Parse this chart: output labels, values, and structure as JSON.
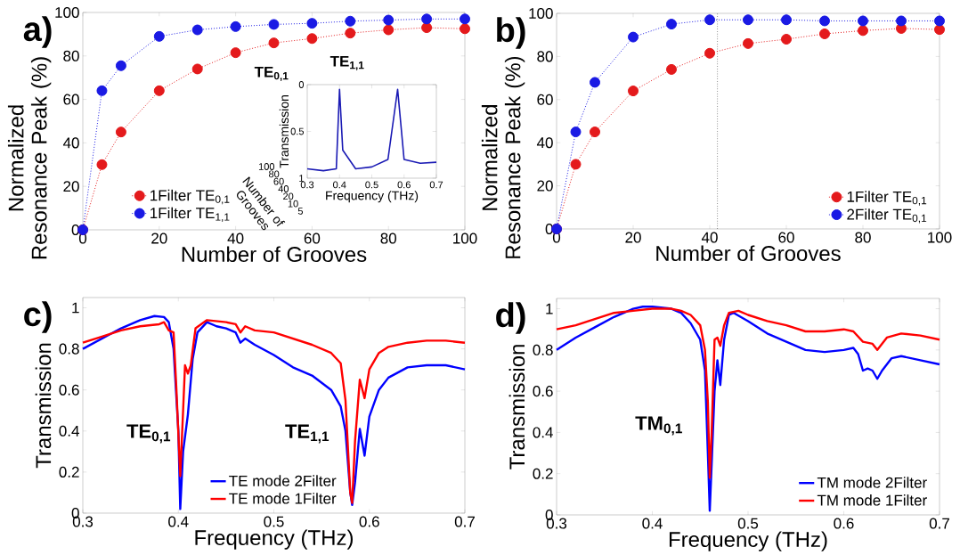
{
  "chart_data": [
    {
      "type": "line",
      "title": "a)",
      "xlabel": "Number of Grooves",
      "ylabel": "Normalized Resonance Peak (%)",
      "xlim": [
        0,
        100
      ],
      "ylim": [
        0,
        100
      ],
      "xticks": [
        0,
        20,
        40,
        60,
        80,
        100
      ],
      "yticks": [
        0,
        20,
        40,
        60,
        80,
        100
      ],
      "marker": "circle",
      "line_style": "dotted",
      "legend": "bottom left",
      "series": [
        {
          "name": "1Filter TE$_{0,1}$",
          "color": "#e41a1c",
          "x": [
            0,
            5,
            10,
            20,
            30,
            40,
            50,
            60,
            70,
            80,
            90,
            100
          ],
          "values": [
            0,
            30,
            45,
            64,
            74,
            81.5,
            86,
            88,
            90.5,
            92,
            93,
            92.5
          ]
        },
        {
          "name": "1Filter TE$_{1,1}$",
          "color": "#1a1ae4",
          "x": [
            0,
            5,
            10,
            20,
            30,
            40,
            50,
            60,
            70,
            80,
            90,
            100
          ],
          "values": [
            0,
            64,
            75.5,
            89,
            92,
            93.5,
            94.5,
            95,
            96,
            96.5,
            97,
            97
          ]
        }
      ]
    },
    {
      "type": "line",
      "xlabel": "Frequency (THz)",
      "ylabel": "Transmission",
      "xlim": [
        0.3,
        0.7
      ],
      "ylim": [
        1,
        0
      ],
      "xticks": [
        0.3,
        0.4,
        0.5,
        0.6,
        0.7
      ],
      "yticks": [
        0,
        0.5,
        1
      ],
      "annotations": [
        "TE$_{0,1}$",
        "TE$_{1,1}$",
        "Number of Grooves",
        "100",
        "80",
        "60",
        "40",
        "20",
        "10",
        "5"
      ],
      "series": [
        {
          "color": "#1a1ab4",
          "x": [
            0.3,
            0.35,
            0.39,
            0.4,
            0.41,
            0.45,
            0.5,
            0.55,
            0.58,
            0.6,
            0.65,
            0.7
          ],
          "values": [
            0.9,
            0.92,
            0.9,
            0.05,
            0.7,
            0.9,
            0.88,
            0.8,
            0.05,
            0.8,
            0.84,
            0.83
          ]
        }
      ]
    },
    {
      "type": "line",
      "title": "b)",
      "xlabel": "Number of Grooves",
      "ylabel": "Normalized Resonance Peak (%)",
      "xlim": [
        0,
        100
      ],
      "ylim": [
        0,
        100
      ],
      "xticks": [
        0,
        20,
        40,
        60,
        80,
        100
      ],
      "yticks": [
        0,
        20,
        40,
        60,
        80,
        100
      ],
      "marker": "circle",
      "line_style": "dotted",
      "legend": "bottom right",
      "ref_lines": [
        {
          "axis": "x",
          "value": 42,
          "color": "#555555",
          "line_style": "dotted"
        }
      ],
      "series": [
        {
          "name": "1Filter TE$_{0,1}$",
          "color": "#e41a1c",
          "x": [
            0,
            5,
            10,
            20,
            30,
            40,
            50,
            60,
            70,
            80,
            90,
            100
          ],
          "values": [
            0,
            30,
            45,
            64,
            74,
            81.5,
            86,
            88,
            90.5,
            92,
            93,
            92.5
          ]
        },
        {
          "name": "2Filter TE$_{0,1}$",
          "color": "#1a1ae4",
          "x": [
            0,
            5,
            10,
            20,
            30,
            40,
            50,
            60,
            70,
            80,
            90,
            100
          ],
          "values": [
            0,
            45,
            68,
            89,
            95,
            97,
            97,
            97,
            96.5,
            96.5,
            96.5,
            96.5
          ]
        }
      ]
    },
    {
      "type": "line",
      "title": "c)",
      "xlabel": "Frequency (THz)",
      "ylabel": "Transmission",
      "xlim": [
        0.3,
        0.7
      ],
      "ylim": [
        0,
        1.05
      ],
      "xticks": [
        0.3,
        0.4,
        0.5,
        0.6,
        0.7
      ],
      "yticks": [
        0,
        0.2,
        0.4,
        0.6,
        0.8,
        1
      ],
      "legend": "bottom",
      "annotations": [
        "TE$_{0,1}$",
        "TE$_{1,1}$"
      ],
      "series": [
        {
          "name": "TE  mode 2Filter",
          "color": "#0000ff",
          "x": [
            0.3,
            0.32,
            0.34,
            0.36,
            0.375,
            0.385,
            0.39,
            0.395,
            0.4,
            0.402,
            0.405,
            0.41,
            0.415,
            0.42,
            0.43,
            0.44,
            0.45,
            0.46,
            0.465,
            0.47,
            0.48,
            0.5,
            0.52,
            0.54,
            0.56,
            0.57,
            0.575,
            0.58,
            0.582,
            0.585,
            0.59,
            0.595,
            0.6,
            0.61,
            0.62,
            0.64,
            0.66,
            0.68,
            0.7
          ],
          "values": [
            0.8,
            0.85,
            0.9,
            0.94,
            0.96,
            0.955,
            0.93,
            0.8,
            0.4,
            0.02,
            0.3,
            0.48,
            0.75,
            0.88,
            0.93,
            0.91,
            0.9,
            0.88,
            0.83,
            0.85,
            0.82,
            0.77,
            0.71,
            0.67,
            0.6,
            0.52,
            0.4,
            0.1,
            0.04,
            0.15,
            0.41,
            0.28,
            0.47,
            0.6,
            0.66,
            0.71,
            0.72,
            0.72,
            0.7
          ]
        },
        {
          "name": "TE  mode 1Filter",
          "color": "#ff0000",
          "x": [
            0.3,
            0.32,
            0.34,
            0.36,
            0.38,
            0.385,
            0.39,
            0.395,
            0.398,
            0.402,
            0.405,
            0.407,
            0.41,
            0.413,
            0.418,
            0.43,
            0.45,
            0.46,
            0.465,
            0.47,
            0.48,
            0.5,
            0.52,
            0.54,
            0.56,
            0.57,
            0.575,
            0.58,
            0.582,
            0.585,
            0.59,
            0.595,
            0.6,
            0.61,
            0.62,
            0.64,
            0.66,
            0.68,
            0.7
          ],
          "values": [
            0.83,
            0.86,
            0.89,
            0.91,
            0.92,
            0.93,
            0.89,
            0.88,
            0.6,
            0.18,
            0.5,
            0.72,
            0.68,
            0.72,
            0.9,
            0.94,
            0.93,
            0.92,
            0.88,
            0.91,
            0.89,
            0.88,
            0.85,
            0.82,
            0.78,
            0.73,
            0.55,
            0.1,
            0.05,
            0.35,
            0.65,
            0.56,
            0.7,
            0.78,
            0.81,
            0.83,
            0.84,
            0.84,
            0.83
          ]
        }
      ]
    },
    {
      "type": "line",
      "title": "d)",
      "xlabel": "Frequency (THz)",
      "ylabel": "Transmission",
      "xlim": [
        0.3,
        0.7
      ],
      "ylim": [
        0,
        1.05
      ],
      "xticks": [
        0.3,
        0.4,
        0.5,
        0.6,
        0.7
      ],
      "yticks": [
        0,
        0.2,
        0.4,
        0.6,
        0.8,
        1
      ],
      "legend": "bottom right",
      "annotations": [
        "TM$_{0,1}$"
      ],
      "series": [
        {
          "name": "TM  mode 2Filter",
          "color": "#0000ff",
          "x": [
            0.3,
            0.32,
            0.34,
            0.36,
            0.38,
            0.39,
            0.4,
            0.42,
            0.43,
            0.44,
            0.45,
            0.455,
            0.458,
            0.46,
            0.462,
            0.465,
            0.468,
            0.471,
            0.475,
            0.48,
            0.485,
            0.5,
            0.52,
            0.54,
            0.56,
            0.58,
            0.6,
            0.61,
            0.615,
            0.62,
            0.625,
            0.63,
            0.635,
            0.64,
            0.65,
            0.66,
            0.68,
            0.7
          ],
          "values": [
            0.8,
            0.86,
            0.91,
            0.96,
            1.0,
            1.01,
            1.01,
            1.0,
            0.98,
            0.93,
            0.85,
            0.7,
            0.3,
            0.02,
            0.25,
            0.6,
            0.75,
            0.63,
            0.85,
            0.97,
            0.98,
            0.94,
            0.88,
            0.84,
            0.8,
            0.79,
            0.8,
            0.81,
            0.78,
            0.7,
            0.71,
            0.7,
            0.66,
            0.7,
            0.76,
            0.77,
            0.75,
            0.73
          ]
        },
        {
          "name": "TM  mode 1Filter",
          "color": "#ff0000",
          "x": [
            0.3,
            0.32,
            0.34,
            0.36,
            0.38,
            0.4,
            0.42,
            0.43,
            0.44,
            0.45,
            0.455,
            0.458,
            0.46,
            0.462,
            0.465,
            0.468,
            0.471,
            0.475,
            0.48,
            0.49,
            0.5,
            0.52,
            0.54,
            0.56,
            0.58,
            0.6,
            0.61,
            0.62,
            0.63,
            0.635,
            0.645,
            0.66,
            0.68,
            0.7
          ],
          "values": [
            0.9,
            0.92,
            0.95,
            0.98,
            0.99,
            1.0,
            1.0,
            0.99,
            0.97,
            0.92,
            0.8,
            0.55,
            0.18,
            0.4,
            0.85,
            0.86,
            0.82,
            0.92,
            0.98,
            0.99,
            0.97,
            0.94,
            0.92,
            0.89,
            0.89,
            0.9,
            0.89,
            0.84,
            0.83,
            0.8,
            0.86,
            0.88,
            0.87,
            0.85
          ]
        }
      ]
    }
  ]
}
